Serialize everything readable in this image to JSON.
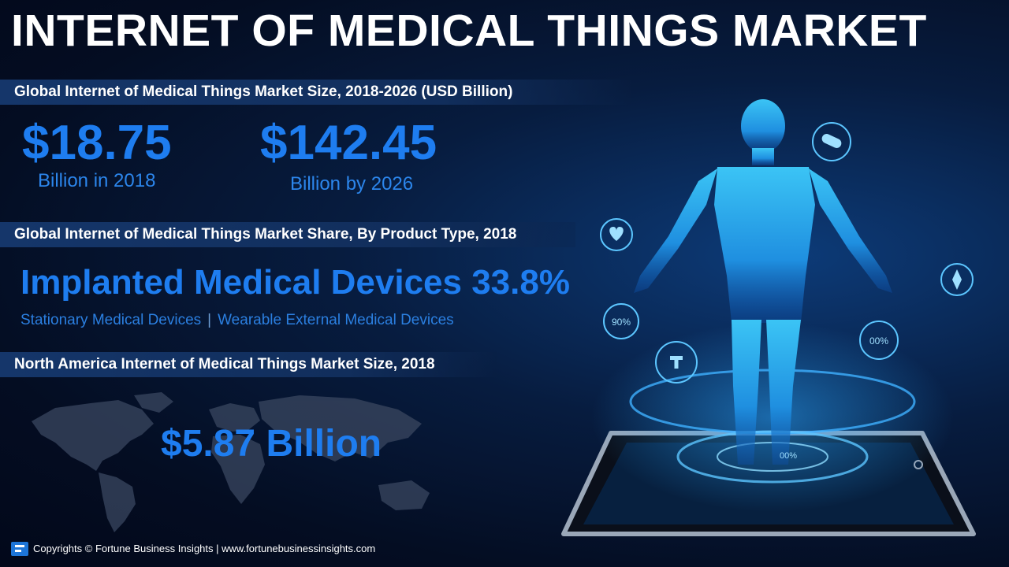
{
  "header": {
    "title": "INTERNET OF MEDICAL THINGS MARKET"
  },
  "section_size": {
    "heading": "Global Internet of Medical Things Market Size, 2018-2026 (USD Billion)",
    "value_2018": "$18.75",
    "label_2018": "Billion in 2018",
    "value_2026": "$142.45",
    "label_2026": "Billion by 2026"
  },
  "section_share": {
    "heading": "Global Internet of Medical Things Market Share, By Product Type, 2018",
    "highlight": "Implanted Medical Devices 33.8%",
    "segments": [
      "Stationary Medical Devices",
      "Wearable External Medical Devices"
    ],
    "separator": "|"
  },
  "section_north_america": {
    "heading": "North America Internet of Medical Things Market Size, 2018",
    "value": "$5.87 Billion"
  },
  "illustration": {
    "badge_left": "90%",
    "badge_right": "00%",
    "badge_tablet": "00%",
    "icons": [
      "pill-icon",
      "heart-icon",
      "compass-icon",
      "medical-cross-icon"
    ]
  },
  "footer": {
    "text": "Copyrights © Fortune Business Insights | www.fortunebusinessinsights.com"
  },
  "colors": {
    "accent": "#1e7df0",
    "band": "#15366a",
    "background": "#040d22"
  }
}
